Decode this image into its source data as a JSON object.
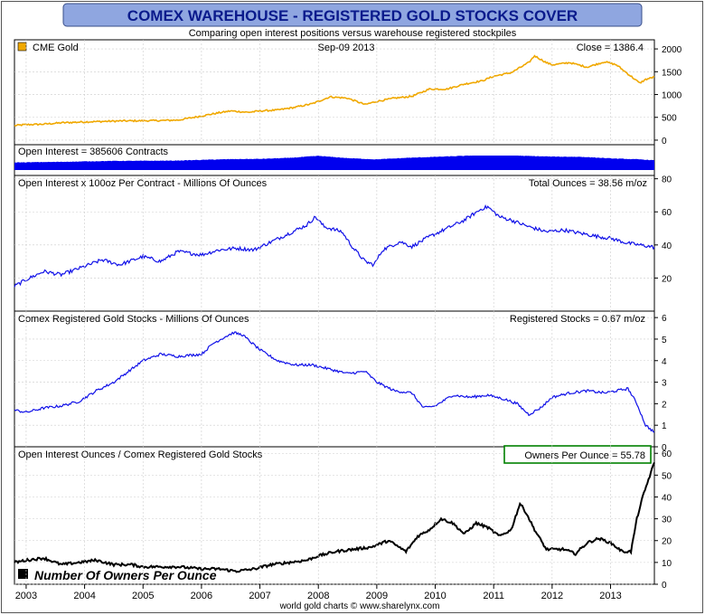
{
  "header": {
    "title": "COMEX WAREHOUSE - REGISTERED GOLD STOCKS COVER",
    "subtitle": "Comparing open interest positions versus warehouse registered stockpiles"
  },
  "footer": {
    "credit": "world gold charts © www.sharelynx.com"
  },
  "colors": {
    "title_bg": "#8fa6e0",
    "title_text": "#0a1a8c",
    "gold": "#f0a800",
    "blue": "#1010e8",
    "fill_blue": "#0000ee",
    "ratio": "#000000",
    "highlight_box": "#008000"
  },
  "x_axis": {
    "start_year": 2002.8,
    "end_year": 2013.75,
    "tick_labels": [
      "2003",
      "2004",
      "2005",
      "2006",
      "2007",
      "2008",
      "2009",
      "2010",
      "2011",
      "2012",
      "2013"
    ]
  },
  "chart_data": [
    {
      "id": "gold",
      "type": "line",
      "legend_label": "CME Gold",
      "date_label": "Sep-09  2013",
      "readout": "Close = 1386.4",
      "ylim": [
        -100,
        2200
      ],
      "yticks": [
        0,
        500,
        1000,
        1500,
        2000
      ],
      "x": [
        2002.8,
        2003.0,
        2003.3,
        2003.6,
        2004.0,
        2004.3,
        2004.6,
        2005.0,
        2005.3,
        2005.6,
        2006.0,
        2006.3,
        2006.5,
        2006.8,
        2007.0,
        2007.3,
        2007.6,
        2007.9,
        2008.2,
        2008.5,
        2008.8,
        2009.0,
        2009.3,
        2009.6,
        2009.9,
        2010.2,
        2010.5,
        2010.8,
        2011.0,
        2011.3,
        2011.6,
        2011.7,
        2011.9,
        2012.0,
        2012.3,
        2012.6,
        2012.9,
        2013.1,
        2013.3,
        2013.5,
        2013.6,
        2013.75
      ],
      "values": [
        320,
        340,
        350,
        380,
        400,
        410,
        420,
        425,
        430,
        440,
        530,
        600,
        640,
        610,
        640,
        660,
        720,
        800,
        950,
        920,
        780,
        850,
        920,
        960,
        1120,
        1120,
        1230,
        1300,
        1400,
        1480,
        1700,
        1850,
        1700,
        1650,
        1700,
        1600,
        1720,
        1650,
        1450,
        1250,
        1330,
        1386
      ]
    },
    {
      "id": "open-interest",
      "type": "area",
      "readout": "Open Interest = 385606 Contracts",
      "ylim": [
        0,
        1000000
      ],
      "x": [
        2002.8,
        2003.5,
        2004.5,
        2005.5,
        2006.0,
        2006.5,
        2007.0,
        2007.5,
        2008.0,
        2008.5,
        2009.0,
        2009.5,
        2010.0,
        2010.5,
        2011.0,
        2011.5,
        2012.0,
        2012.5,
        2013.0,
        2013.5,
        2013.75
      ],
      "values": [
        300000,
        320000,
        360000,
        370000,
        400000,
        430000,
        440000,
        480000,
        560000,
        470000,
        420000,
        480000,
        520000,
        560000,
        630000,
        560000,
        530000,
        520000,
        460000,
        420000,
        385606
      ]
    },
    {
      "id": "oi-ounces",
      "type": "line",
      "title": "Open Interest x 100oz Per Contract - Millions Of Ounces",
      "readout": "Total Ounces = 38.56 m/oz",
      "ylim": [
        0,
        82
      ],
      "yticks": [
        20,
        40,
        60,
        80
      ],
      "x": [
        2002.8,
        2003.0,
        2003.3,
        2003.6,
        2004.0,
        2004.3,
        2004.6,
        2005.0,
        2005.3,
        2005.6,
        2006.0,
        2006.3,
        2006.6,
        2006.9,
        2007.2,
        2007.5,
        2007.8,
        2007.95,
        2008.1,
        2008.4,
        2008.6,
        2008.8,
        2008.95,
        2009.1,
        2009.4,
        2009.6,
        2009.9,
        2010.2,
        2010.5,
        2010.8,
        2010.9,
        2011.1,
        2011.3,
        2011.6,
        2011.9,
        2012.2,
        2012.5,
        2012.8,
        2013.0,
        2013.3,
        2013.5,
        2013.75
      ],
      "values": [
        15,
        19,
        24,
        22,
        27,
        31,
        28,
        33,
        30,
        36,
        34,
        37,
        38,
        37,
        42,
        47,
        52,
        57,
        51,
        48,
        38,
        30,
        28,
        37,
        42,
        39,
        45,
        50,
        55,
        62,
        63,
        57,
        55,
        51,
        48,
        49,
        47,
        45,
        44,
        41,
        40,
        38.6
      ]
    },
    {
      "id": "registered-stocks",
      "type": "line",
      "title": "Comex Registered Gold Stocks - Millions Of Ounces",
      "readout": "Registered Stocks = 0.67 m/oz",
      "ylim": [
        0,
        6.3
      ],
      "yticks": [
        0,
        1,
        2,
        3,
        4,
        5,
        6
      ],
      "x": [
        2002.8,
        2003.0,
        2003.3,
        2003.6,
        2003.9,
        2004.2,
        2004.5,
        2004.8,
        2005.0,
        2005.3,
        2005.6,
        2006.0,
        2006.2,
        2006.4,
        2006.55,
        2006.7,
        2007.0,
        2007.3,
        2007.6,
        2007.9,
        2008.2,
        2008.5,
        2008.8,
        2009.0,
        2009.3,
        2009.6,
        2009.8,
        2010.0,
        2010.3,
        2010.6,
        2010.9,
        2011.2,
        2011.4,
        2011.6,
        2011.8,
        2012.0,
        2012.3,
        2012.6,
        2012.9,
        2013.1,
        2013.3,
        2013.45,
        2013.6,
        2013.75
      ],
      "values": [
        1.7,
        1.6,
        1.8,
        1.9,
        2.1,
        2.6,
        3.0,
        3.6,
        4.0,
        4.3,
        4.2,
        4.3,
        4.8,
        5.1,
        5.3,
        5.2,
        4.5,
        4.0,
        3.8,
        3.8,
        3.6,
        3.4,
        3.5,
        3.0,
        2.6,
        2.5,
        1.8,
        1.9,
        2.4,
        2.3,
        2.4,
        2.2,
        2.0,
        1.5,
        1.8,
        2.3,
        2.5,
        2.6,
        2.5,
        2.6,
        2.7,
        2.0,
        1.0,
        0.67
      ]
    },
    {
      "id": "owners-per-ounce",
      "type": "line",
      "title": "Open Interest Ounces / Comex Registered Gold Stocks",
      "readout": "Owners Per Ounce = 55.78",
      "legend_label": "Number Of Owners Per Ounce",
      "ylim": [
        0,
        63
      ],
      "yticks": [
        0,
        10,
        20,
        30,
        40,
        50,
        60
      ],
      "x": [
        2002.8,
        2003.0,
        2003.3,
        2003.6,
        2003.9,
        2004.2,
        2004.5,
        2004.8,
        2005.0,
        2005.3,
        2005.6,
        2006.0,
        2006.3,
        2006.6,
        2006.9,
        2007.2,
        2007.5,
        2007.8,
        2008.0,
        2008.3,
        2008.6,
        2008.9,
        2009.2,
        2009.5,
        2009.7,
        2009.9,
        2010.1,
        2010.3,
        2010.5,
        2010.7,
        2010.9,
        2011.1,
        2011.3,
        2011.45,
        2011.55,
        2011.7,
        2011.9,
        2012.0,
        2012.2,
        2012.4,
        2012.6,
        2012.8,
        2013.0,
        2013.2,
        2013.35,
        2013.45,
        2013.55,
        2013.65,
        2013.75
      ],
      "values": [
        10,
        11,
        12,
        9,
        10,
        11,
        9,
        9,
        8,
        8,
        8,
        7,
        7,
        6,
        7,
        9,
        10,
        11,
        13,
        15,
        16,
        17,
        20,
        15,
        22,
        25,
        30,
        28,
        23,
        28,
        26,
        22,
        25,
        37,
        33,
        25,
        16,
        16,
        16,
        14,
        19,
        21,
        19,
        15,
        15,
        30,
        40,
        48,
        55.78
      ]
    }
  ]
}
